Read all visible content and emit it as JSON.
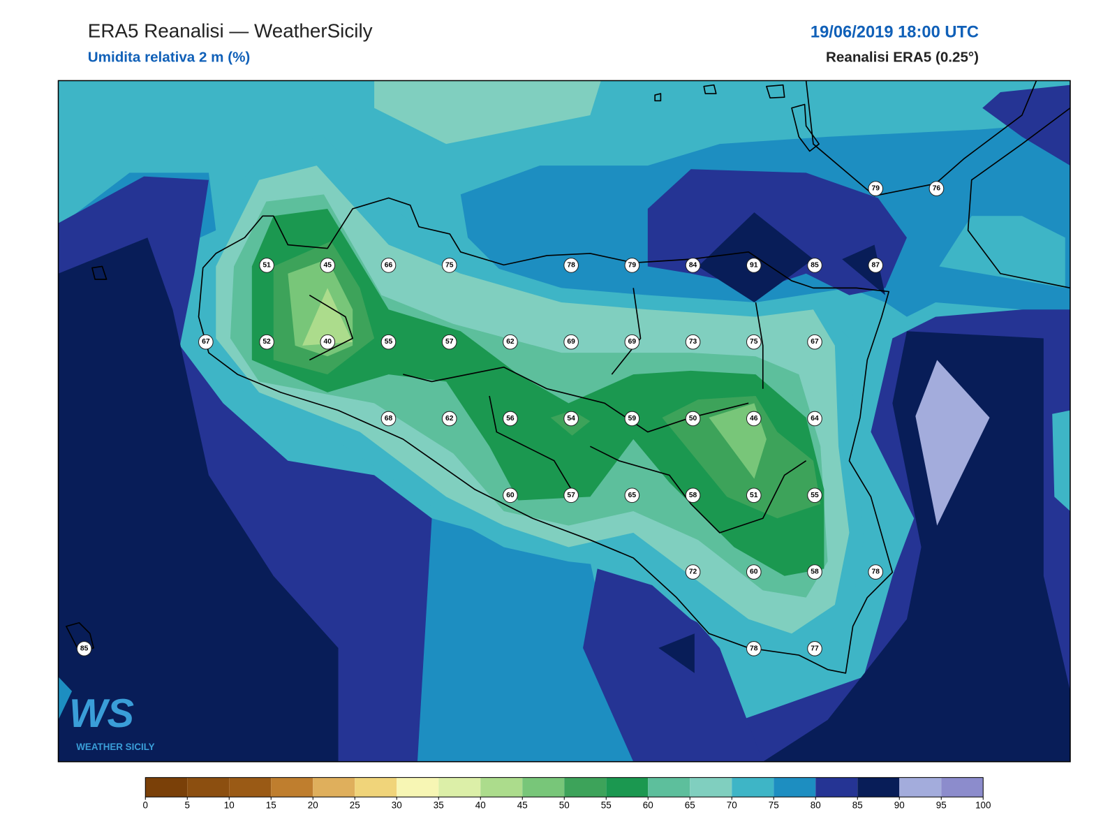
{
  "header": {
    "title": "ERA5 Reanalisi — WeatherSicily",
    "subtitle": "Umidita relativa 2 m (%)",
    "datetime": "19/06/2019 18:00 UTC",
    "source": "Reanalisi ERA5 (0.25°)"
  },
  "stations": [
    79,
    76,
    51,
    45,
    66,
    75,
    78,
    79,
    84,
    91,
    85,
    87,
    67,
    52,
    40,
    55,
    57,
    62,
    69,
    69,
    73,
    75,
    67,
    68,
    62,
    56,
    54,
    59,
    50,
    46,
    64,
    60,
    57,
    65,
    58,
    51,
    55,
    72,
    60,
    58,
    78,
    85,
    78,
    77
  ],
  "logo": {
    "mark": "WS",
    "name": "WEATHER SICILY"
  },
  "colorbar": {
    "ticks": [
      0,
      5,
      10,
      15,
      20,
      25,
      30,
      35,
      40,
      45,
      50,
      55,
      60,
      65,
      70,
      75,
      80,
      85,
      90,
      95,
      100
    ],
    "colors": [
      "#7a4008",
      "#8c4f10",
      "#9a5a15",
      "#bf7e2e",
      "#dfaf5c",
      "#f0d47a",
      "#f7f6b4",
      "#dcefa8",
      "#acdc8c",
      "#78c679",
      "#3da35a",
      "#1b9850",
      "#5dbf9c",
      "#80cfbf",
      "#3eb5c6",
      "#1d8ec1",
      "#253494",
      "#081d58",
      "#a3acdc",
      "#8c8ccc"
    ]
  }
}
